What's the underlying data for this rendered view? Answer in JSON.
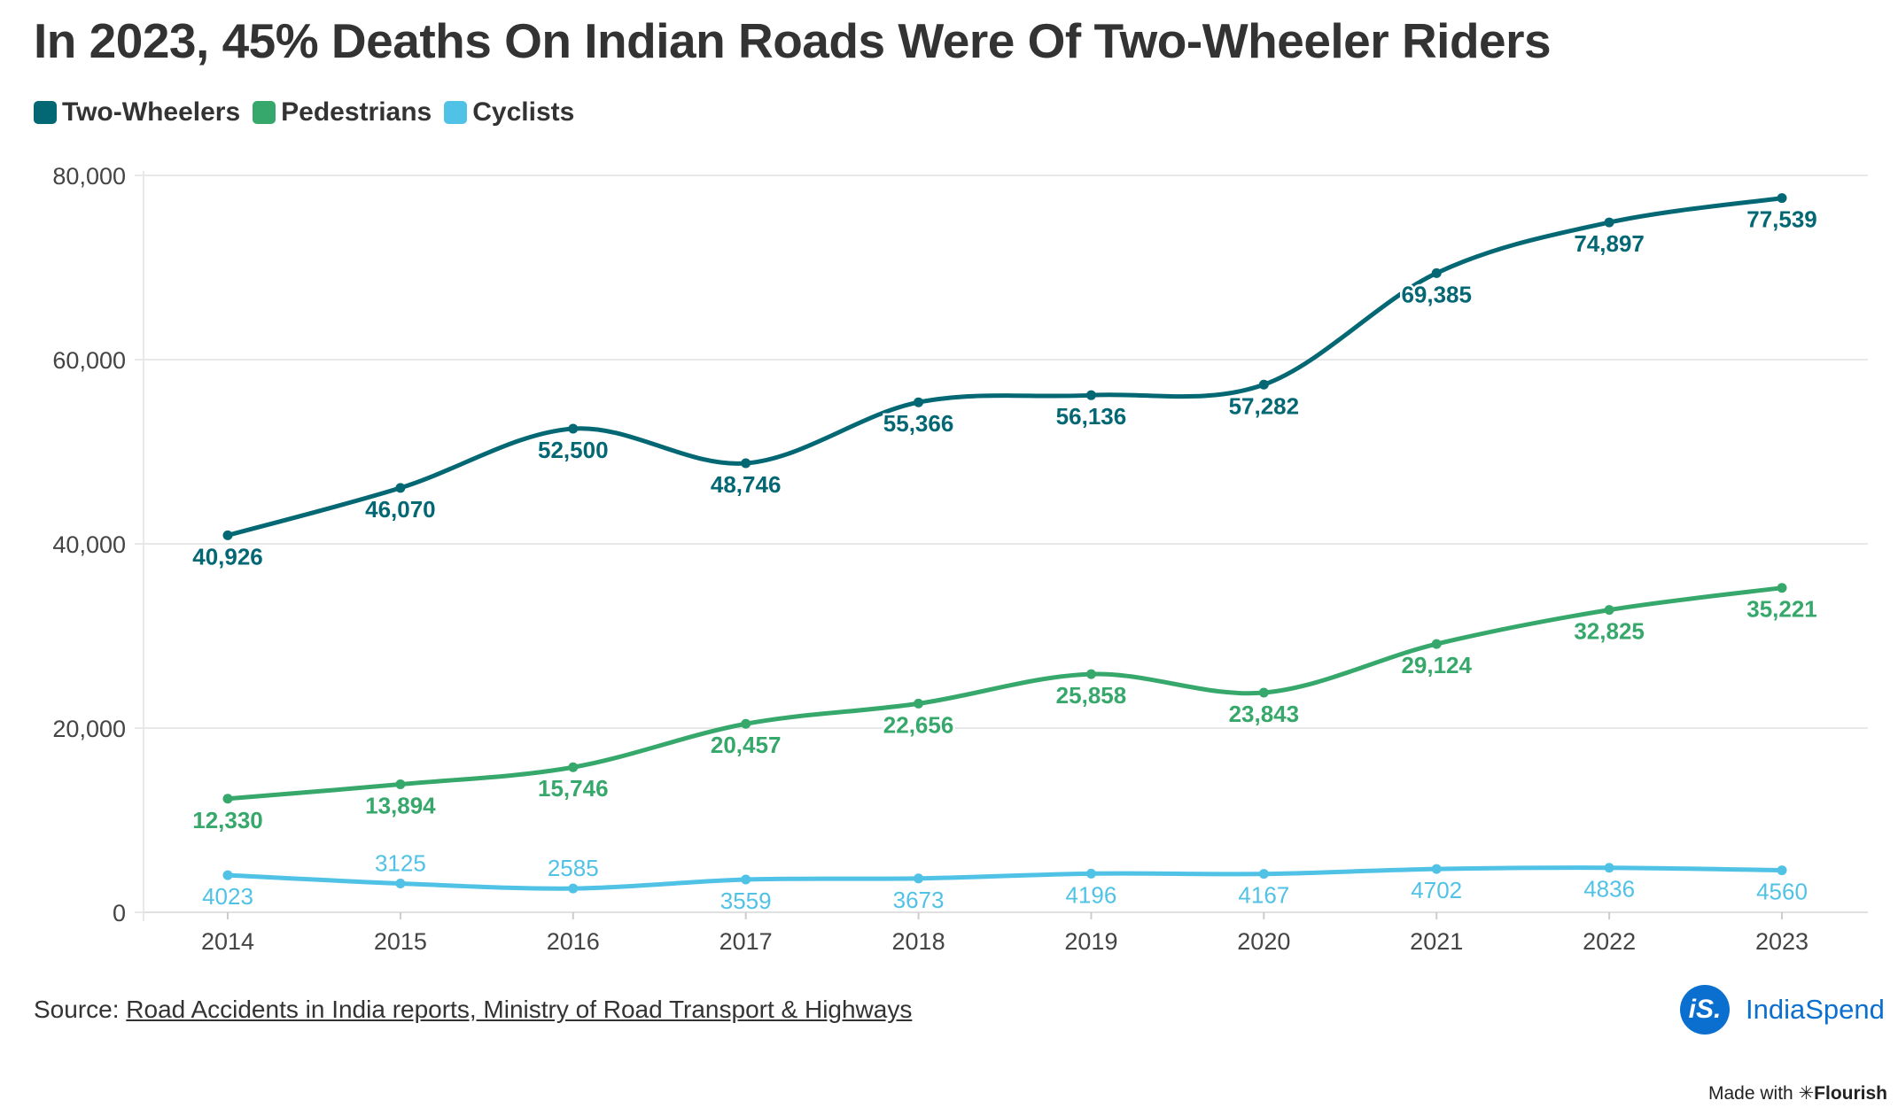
{
  "title": "In 2023, 45% Deaths On Indian Roads Were Of Two-Wheeler Riders",
  "source_prefix": "Source: ",
  "source_link": "Road Accidents in India reports, Ministry of Road Transport & Highways",
  "logo_mark": "iS.",
  "logo_text": "IndiaSpend",
  "made_with": "Made with",
  "flourish": "✳Flourish",
  "chart_data": {
    "type": "line",
    "title": "In 2023, 45% Deaths On Indian Roads Were Of Two-Wheeler Riders",
    "xlabel": "",
    "ylabel": "",
    "x": [
      "2014",
      "2015",
      "2016",
      "2017",
      "2018",
      "2019",
      "2020",
      "2021",
      "2022",
      "2023"
    ],
    "ylim": [
      0,
      80000
    ],
    "yticks": [
      0,
      20000,
      40000,
      60000,
      80000
    ],
    "ytick_labels": [
      "0",
      "20,000",
      "40,000",
      "60,000",
      "80,000"
    ],
    "grid": true,
    "legend": "top-left",
    "series": [
      {
        "name": "Two-Wheelers",
        "color": "#036873",
        "values": [
          40926,
          46070,
          52500,
          48746,
          55366,
          56136,
          57282,
          69385,
          74897,
          77539
        ],
        "labels": [
          "40,926",
          "46,070",
          "52,500",
          "48,746",
          "55,366",
          "56,136",
          "57,282",
          "69,385",
          "74,897",
          "77,539"
        ]
      },
      {
        "name": "Pedestrians",
        "color": "#37a86b",
        "values": [
          12330,
          13894,
          15746,
          20457,
          22656,
          25858,
          23843,
          29124,
          32825,
          35221
        ],
        "labels": [
          "12,330",
          "13,894",
          "15,746",
          "20,457",
          "22,656",
          "25,858",
          "23,843",
          "29,124",
          "32,825",
          "35,221"
        ]
      },
      {
        "name": "Cyclists",
        "color": "#50c2e6",
        "values": [
          4023,
          3125,
          2585,
          3559,
          3673,
          4196,
          4167,
          4702,
          4836,
          4560
        ],
        "labels": [
          "4023",
          "3125",
          "2585",
          "3559",
          "3673",
          "4196",
          "4167",
          "4702",
          "4836",
          "4560"
        ]
      }
    ]
  }
}
